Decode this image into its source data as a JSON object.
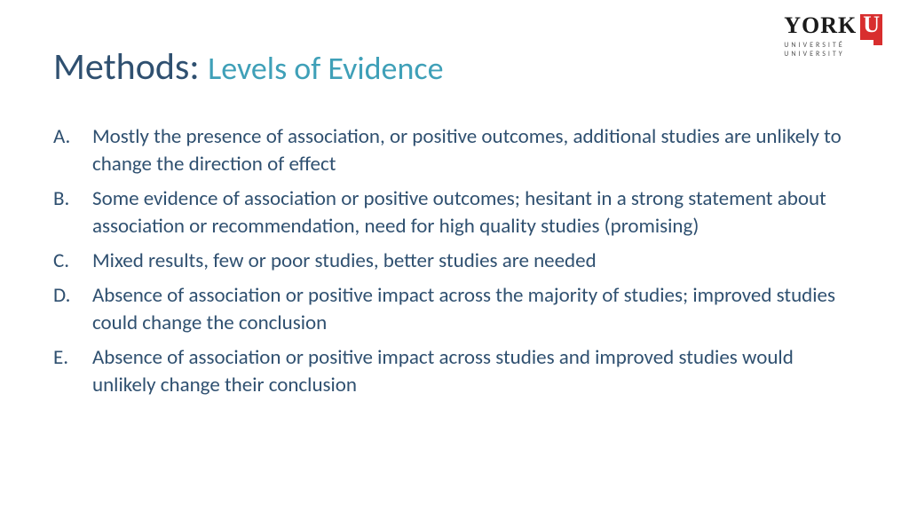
{
  "logo": {
    "name": "YORK",
    "glyph": "U",
    "sub1": "UNIVERSITÉ",
    "sub2": "UNIVERSITY",
    "name_color": "#1a1a1a",
    "block_bg": "#d82e2e",
    "block_fg": "#ffffff"
  },
  "title": {
    "main": "Methods:",
    "sub": "Levels of Evidence",
    "main_color": "#2f5070",
    "sub_color": "#3fa0b8",
    "main_fontsize": 42,
    "sub_fontsize": 36
  },
  "body": {
    "text_color": "#2f5070",
    "fontsize": 23,
    "items": [
      {
        "marker": "A.",
        "text": "Mostly the presence of association, or positive outcomes, additional studies are unlikely to change the direction of effect"
      },
      {
        "marker": "B.",
        "text": "Some evidence of association or positive outcomes; hesitant in a strong statement about association or recommendation, need for high quality studies (promising)"
      },
      {
        "marker": "C.",
        "text": "Mixed results, few or poor studies, better studies are needed"
      },
      {
        "marker": "D.",
        "text": "Absence of association or positive impact across the majority of studies; improved studies could change the conclusion"
      },
      {
        "marker": "E.",
        "text": "Absence of association or positive impact across studies and improved studies would unlikely change their conclusion"
      }
    ]
  },
  "background_color": "#ffffff"
}
